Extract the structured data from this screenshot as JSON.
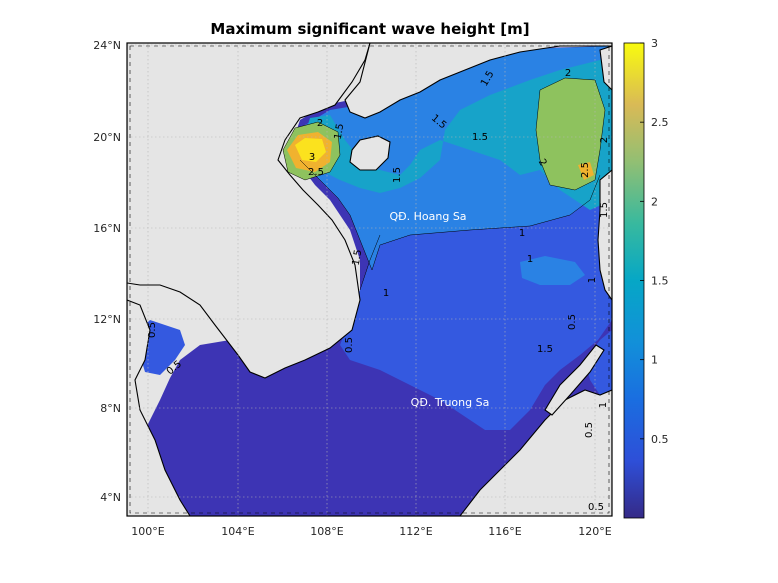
{
  "title": "Maximum significant wave height [m]",
  "map": {
    "lon_range": [
      99.0,
      121.0
    ],
    "lat_range": [
      3.0,
      24.0
    ],
    "lon_ticks": [
      "100°E",
      "104°E",
      "108°E",
      "112°E",
      "116°E",
      "120°E"
    ],
    "lat_ticks": [
      "24°N",
      "20°N",
      "16°N",
      "12°N",
      "8°N",
      "4°N"
    ],
    "land_color": "#e5e5e5",
    "grid": true
  },
  "place_labels": [
    "QĐ. Hoang Sa",
    "QĐ. Truong Sa"
  ],
  "contour_labels": [
    "2",
    "1.5",
    "2",
    "1.5",
    "1.5",
    "1.5",
    "2",
    "2.5",
    "1.5",
    "3",
    "2.5",
    "2",
    "1.5",
    "1",
    "1",
    "1.5",
    "1",
    "1",
    "0.5",
    "0.5",
    "0.5",
    "0.5",
    "1.5",
    "0.5",
    "0.5",
    "1"
  ],
  "colorbar": {
    "range": [
      0,
      3
    ],
    "ticks": [
      "0.5",
      "1",
      "1.5",
      "2",
      "2.5",
      "3"
    ],
    "colormap": "parula"
  }
}
